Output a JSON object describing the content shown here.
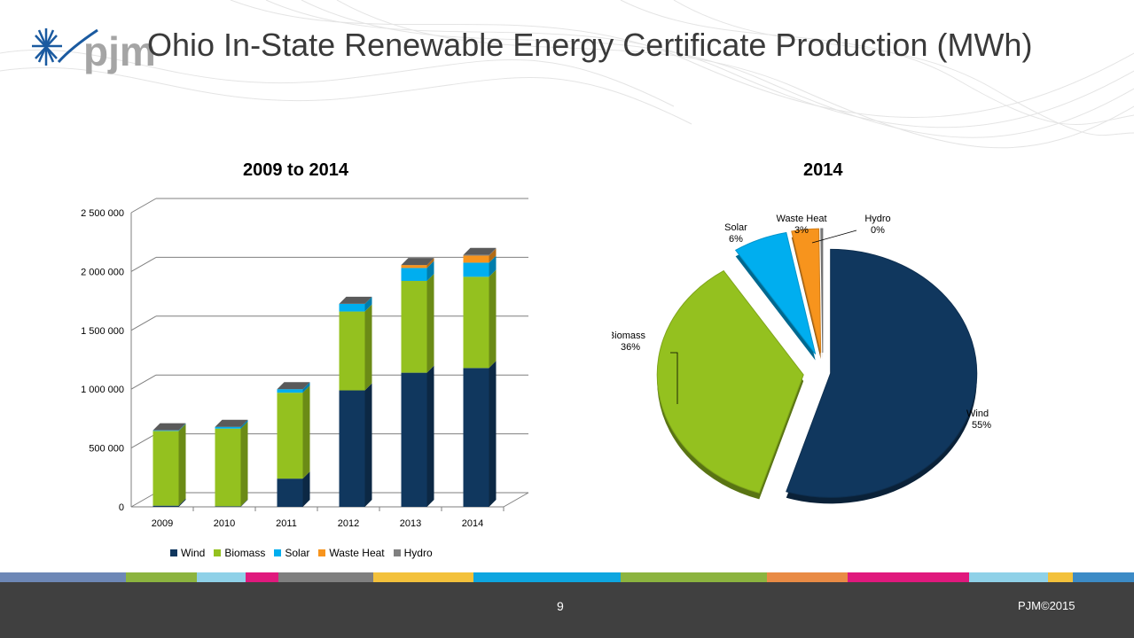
{
  "title": "Ohio In-State Renewable Energy Certificate Production (MWh)",
  "logo_text": "pjm",
  "page_number": "9",
  "copyright": "PJM©2015",
  "colors": {
    "Wind": "#10375e",
    "Biomass": "#94c11f",
    "Solar": "#00aeef",
    "Waste Heat": "#f7941d",
    "Hydro": "#808080"
  },
  "stripe_colors": [
    "#6d87b6",
    "#8cb43f",
    "#8fd1e8",
    "#e0197d",
    "#7f7f7f",
    "#f3c13b",
    "#0ea6e0",
    "#8cb43f",
    "#e98b45",
    "#e0197d",
    "#8fd1e8",
    "#f3c13b",
    "#3c8bc6"
  ],
  "chart_data": [
    {
      "type": "bar",
      "stacked": true,
      "title": "2009 to 2014",
      "categories": [
        "2009",
        "2010",
        "2011",
        "2012",
        "2013",
        "2014"
      ],
      "series": [
        {
          "name": "Wind",
          "values": [
            10000,
            5000,
            240000,
            990000,
            1140000,
            1180000
          ]
        },
        {
          "name": "Biomass",
          "values": [
            635000,
            660000,
            730000,
            670000,
            780000,
            775000
          ]
        },
        {
          "name": "Solar",
          "values": [
            5000,
            15000,
            30000,
            65000,
            110000,
            120000
          ]
        },
        {
          "name": "Waste Heat",
          "values": [
            0,
            0,
            0,
            0,
            25000,
            60000
          ]
        },
        {
          "name": "Hydro",
          "values": [
            0,
            0,
            0,
            0,
            0,
            5000
          ]
        }
      ],
      "ylim": [
        0,
        2500000
      ],
      "yticks": [
        0,
        500000,
        1000000,
        1500000,
        2000000,
        2500000
      ],
      "ytick_labels": [
        "0",
        "500 000",
        "1 000 000",
        "1 500 000",
        "2 000 000",
        "2 500 000"
      ],
      "grid": true,
      "legend": "bottom"
    },
    {
      "type": "pie",
      "title": "2014",
      "slices": [
        {
          "name": "Wind",
          "value": 55,
          "label": "55%"
        },
        {
          "name": "Biomass",
          "value": 36,
          "label": "36%"
        },
        {
          "name": "Solar",
          "value": 6,
          "label": "6%"
        },
        {
          "name": "Waste Heat",
          "value": 3,
          "label": "3%"
        },
        {
          "name": "Hydro",
          "value": 0.2,
          "label": "0%"
        }
      ]
    }
  ]
}
